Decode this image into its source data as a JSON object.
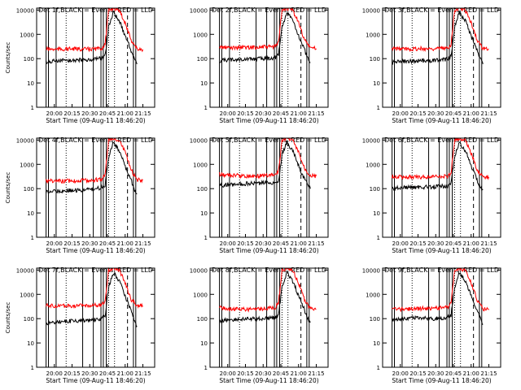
{
  "figure": {
    "colors": {
      "events": "#000000",
      "lld": "#ff0000",
      "axis": "#000000"
    }
  },
  "chart_data": [
    {
      "type": "line",
      "title": "Det 1f,BLACK = Events, RED = LLD",
      "xlabel": "Start Time (09-Aug-11 18:46:20)",
      "ylabel": "Counts/sec",
      "yscale": "log",
      "ylim": [
        1,
        12000
      ],
      "x_ticks": [
        "20:00",
        "20:15",
        "20:30",
        "20:45",
        "21:00",
        "21:15"
      ],
      "y_ticks": [
        "1",
        "10",
        "100",
        "1000",
        "10000"
      ],
      "series": [
        {
          "color": "#000000",
          "x": [
            "19:53",
            "20:00",
            "20:15",
            "20:30",
            "20:40",
            "20:43",
            "20:46",
            "20:50",
            "20:56",
            "21:00",
            "21:04",
            "21:08",
            "21:10"
          ],
          "y": [
            70,
            80,
            85,
            90,
            100,
            130,
            2000,
            8000,
            3000,
            800,
            300,
            90,
            60
          ]
        },
        {
          "color": "#ff0000",
          "x": [
            "19:53",
            "20:00",
            "20:15",
            "20:30",
            "20:40",
            "20:43",
            "20:46",
            "20:50",
            "20:55",
            "21:00",
            "21:05",
            "21:10",
            "21:15"
          ],
          "y": [
            250,
            240,
            250,
            245,
            260,
            400,
            10000,
            12000,
            10000,
            3000,
            600,
            250,
            240
          ]
        }
      ]
    },
    {
      "type": "line",
      "title": "Det 2f,BLACK = Events, RED = LLD",
      "xlabel": "Start Time (09-Aug-11 18:46:20)",
      "ylabel": "",
      "yscale": "log",
      "ylim": [
        1,
        12000
      ],
      "x_ticks": [
        "20:00",
        "20:15",
        "20:30",
        "20:45",
        "21:00",
        "21:15"
      ],
      "y_ticks": [
        "1",
        "10",
        "100",
        "1000",
        "10000"
      ],
      "series": [
        {
          "color": "#000000",
          "x": [
            "19:53",
            "20:00",
            "20:15",
            "20:30",
            "20:40",
            "20:43",
            "20:46",
            "20:50",
            "20:56",
            "21:00",
            "21:04",
            "21:08",
            "21:10"
          ],
          "y": [
            80,
            90,
            95,
            100,
            110,
            140,
            2000,
            8000,
            3000,
            900,
            300,
            100,
            70
          ]
        },
        {
          "color": "#ff0000",
          "x": [
            "19:53",
            "20:00",
            "20:15",
            "20:30",
            "20:40",
            "20:43",
            "20:46",
            "20:50",
            "20:55",
            "21:00",
            "21:05",
            "21:10",
            "21:15"
          ],
          "y": [
            300,
            280,
            290,
            300,
            310,
            450,
            10000,
            12000,
            10000,
            3000,
            600,
            280,
            260
          ]
        }
      ]
    },
    {
      "type": "line",
      "title": "Det 3f,BLACK = Events, RED = LLD",
      "xlabel": "Start Time (09-Aug-11 18:46:20)",
      "ylabel": "",
      "yscale": "log",
      "ylim": [
        1,
        12000
      ],
      "x_ticks": [
        "20:00",
        "20:15",
        "20:30",
        "20:45",
        "21:00",
        "21:15"
      ],
      "y_ticks": [
        "1",
        "10",
        "100",
        "1000",
        "10000"
      ],
      "series": [
        {
          "color": "#000000",
          "x": [
            "19:53",
            "20:00",
            "20:15",
            "20:30",
            "20:40",
            "20:43",
            "20:46",
            "20:50",
            "20:56",
            "21:00",
            "21:04",
            "21:08",
            "21:10"
          ],
          "y": [
            70,
            75,
            80,
            85,
            95,
            120,
            2000,
            8000,
            3000,
            800,
            300,
            90,
            60
          ]
        },
        {
          "color": "#ff0000",
          "x": [
            "19:53",
            "20:00",
            "20:15",
            "20:30",
            "20:40",
            "20:43",
            "20:46",
            "20:50",
            "20:55",
            "21:00",
            "21:05",
            "21:10",
            "21:15"
          ],
          "y": [
            260,
            250,
            255,
            260,
            270,
            400,
            10000,
            12000,
            10000,
            3000,
            600,
            260,
            250
          ]
        }
      ]
    },
    {
      "type": "line",
      "title": "Det 4f,BLACK = Events, RED = LLD",
      "xlabel": "Start Time (09-Aug-11 18:46:20)",
      "ylabel": "Counts/sec",
      "yscale": "log",
      "ylim": [
        1,
        12000
      ],
      "x_ticks": [
        "20:00",
        "20:15",
        "20:30",
        "20:45",
        "21:00",
        "21:15"
      ],
      "y_ticks": [
        "1",
        "10",
        "100",
        "1000",
        "10000"
      ],
      "series": [
        {
          "color": "#000000",
          "x": [
            "19:53",
            "20:00",
            "20:15",
            "20:30",
            "20:40",
            "20:43",
            "20:46",
            "20:50",
            "20:56",
            "21:00",
            "21:04",
            "21:08",
            "21:10"
          ],
          "y": [
            70,
            80,
            85,
            90,
            110,
            140,
            2000,
            8000,
            3000,
            800,
            300,
            90,
            60
          ]
        },
        {
          "color": "#ff0000",
          "x": [
            "19:53",
            "20:00",
            "20:15",
            "20:30",
            "20:40",
            "20:43",
            "20:46",
            "20:50",
            "20:55",
            "21:00",
            "21:05",
            "21:10",
            "21:15"
          ],
          "y": [
            220,
            200,
            210,
            220,
            240,
            400,
            10000,
            12000,
            10000,
            3000,
            600,
            230,
            220
          ]
        }
      ]
    },
    {
      "type": "line",
      "title": "Det 5f,BLACK = Events, RED = LLD",
      "xlabel": "Start Time (09-Aug-11 18:46:20)",
      "ylabel": "",
      "yscale": "log",
      "ylim": [
        1,
        12000
      ],
      "x_ticks": [
        "20:00",
        "20:15",
        "20:30",
        "20:45",
        "21:00",
        "21:15"
      ],
      "y_ticks": [
        "1",
        "10",
        "100",
        "1000",
        "10000"
      ],
      "series": [
        {
          "color": "#000000",
          "x": [
            "19:53",
            "20:00",
            "20:15",
            "20:30",
            "20:40",
            "20:43",
            "20:46",
            "20:50",
            "20:56",
            "21:00",
            "21:04",
            "21:08",
            "21:10"
          ],
          "y": [
            130,
            150,
            160,
            170,
            180,
            200,
            2500,
            8000,
            3000,
            900,
            300,
            150,
            100
          ]
        },
        {
          "color": "#ff0000",
          "x": [
            "19:53",
            "20:00",
            "20:15",
            "20:30",
            "20:40",
            "20:43",
            "20:46",
            "20:50",
            "20:55",
            "21:00",
            "21:05",
            "21:10",
            "21:15"
          ],
          "y": [
            400,
            360,
            330,
            340,
            370,
            500,
            10000,
            12000,
            10000,
            3000,
            700,
            350,
            330
          ]
        }
      ]
    },
    {
      "type": "line",
      "title": "Det 6f,BLACK = Events, RED = LLD",
      "xlabel": "Start Time (09-Aug-11 18:46:20)",
      "ylabel": "",
      "yscale": "log",
      "ylim": [
        1,
        12000
      ],
      "x_ticks": [
        "20:00",
        "20:15",
        "20:30",
        "20:45",
        "21:00",
        "21:15"
      ],
      "y_ticks": [
        "1",
        "10",
        "100",
        "1000",
        "10000"
      ],
      "series": [
        {
          "color": "#000000",
          "x": [
            "19:53",
            "20:00",
            "20:15",
            "20:30",
            "20:40",
            "20:43",
            "20:46",
            "20:50",
            "20:56",
            "21:00",
            "21:04",
            "21:08",
            "21:10"
          ],
          "y": [
            100,
            110,
            115,
            120,
            130,
            160,
            2000,
            8000,
            3000,
            800,
            300,
            110,
            90
          ]
        },
        {
          "color": "#ff0000",
          "x": [
            "19:53",
            "20:00",
            "20:15",
            "20:30",
            "20:40",
            "20:43",
            "20:46",
            "20:50",
            "20:55",
            "21:00",
            "21:05",
            "21:10",
            "21:15"
          ],
          "y": [
            320,
            300,
            300,
            310,
            320,
            450,
            10000,
            12000,
            10000,
            3000,
            600,
            310,
            300
          ]
        }
      ]
    },
    {
      "type": "line",
      "title": "Det 7f,BLACK = Events, RED = LLD",
      "xlabel": "Start Time (09-Aug-11 18:46:20)",
      "ylabel": "Counts/sec",
      "yscale": "log",
      "ylim": [
        1,
        12000
      ],
      "x_ticks": [
        "20:00",
        "20:15",
        "20:30",
        "20:45",
        "21:00",
        "21:15"
      ],
      "y_ticks": [
        "1",
        "10",
        "100",
        "1000",
        "10000"
      ],
      "series": [
        {
          "color": "#000000",
          "x": [
            "19:53",
            "20:00",
            "20:15",
            "20:30",
            "20:40",
            "20:43",
            "20:46",
            "20:50",
            "20:56",
            "21:00",
            "21:04",
            "21:08",
            "21:10"
          ],
          "y": [
            60,
            70,
            80,
            85,
            100,
            130,
            2000,
            8000,
            3000,
            800,
            300,
            80,
            50
          ]
        },
        {
          "color": "#ff0000",
          "x": [
            "19:53",
            "20:00",
            "20:15",
            "20:30",
            "20:40",
            "20:43",
            "20:46",
            "20:50",
            "20:55",
            "21:00",
            "21:05",
            "21:10",
            "21:15"
          ],
          "y": [
            350,
            330,
            340,
            350,
            360,
            500,
            10000,
            12000,
            10000,
            3000,
            600,
            350,
            340
          ]
        }
      ]
    },
    {
      "type": "line",
      "title": "Det 8f,BLACK = Events, RED = LLD",
      "xlabel": "Start Time (09-Aug-11 18:46:20)",
      "ylabel": "",
      "yscale": "log",
      "ylim": [
        1,
        12000
      ],
      "x_ticks": [
        "20:00",
        "20:15",
        "20:30",
        "20:45",
        "21:00",
        "21:15"
      ],
      "y_ticks": [
        "1",
        "10",
        "100",
        "1000",
        "10000"
      ],
      "series": [
        {
          "color": "#000000",
          "x": [
            "19:53",
            "20:00",
            "20:15",
            "20:30",
            "20:40",
            "20:43",
            "20:46",
            "20:50",
            "20:56",
            "21:00",
            "21:04",
            "21:08",
            "21:10"
          ],
          "y": [
            80,
            90,
            95,
            100,
            110,
            140,
            2000,
            8000,
            3000,
            800,
            300,
            100,
            70
          ]
        },
        {
          "color": "#ff0000",
          "x": [
            "19:53",
            "20:00",
            "20:15",
            "20:30",
            "20:40",
            "20:43",
            "20:46",
            "20:50",
            "20:55",
            "21:00",
            "21:05",
            "21:10",
            "21:15"
          ],
          "y": [
            300,
            250,
            240,
            260,
            280,
            450,
            10000,
            12000,
            10000,
            3000,
            600,
            260,
            240
          ]
        }
      ]
    },
    {
      "type": "line",
      "title": "Det 9f,BLACK = Events, RED = LLD",
      "xlabel": "Start Time (09-Aug-11 18:46:20)",
      "ylabel": "",
      "yscale": "log",
      "ylim": [
        1,
        12000
      ],
      "x_ticks": [
        "20:00",
        "20:15",
        "20:30",
        "20:45",
        "21:00",
        "21:15"
      ],
      "y_ticks": [
        "1",
        "10",
        "100",
        "1000",
        "10000"
      ],
      "series": [
        {
          "color": "#000000",
          "x": [
            "19:53",
            "20:00",
            "20:15",
            "20:30",
            "20:40",
            "20:43",
            "20:46",
            "20:50",
            "20:56",
            "21:00",
            "21:04",
            "21:08",
            "21:10"
          ],
          "y": [
            80,
            100,
            110,
            100,
            110,
            140,
            2000,
            8000,
            3000,
            800,
            300,
            90,
            60
          ]
        },
        {
          "color": "#ff0000",
          "x": [
            "19:53",
            "20:00",
            "20:15",
            "20:30",
            "20:40",
            "20:43",
            "20:46",
            "20:50",
            "20:55",
            "21:00",
            "21:05",
            "21:10",
            "21:15"
          ],
          "y": [
            250,
            240,
            260,
            270,
            280,
            450,
            10000,
            12000,
            10000,
            3000,
            600,
            250,
            230
          ]
        }
      ]
    }
  ]
}
